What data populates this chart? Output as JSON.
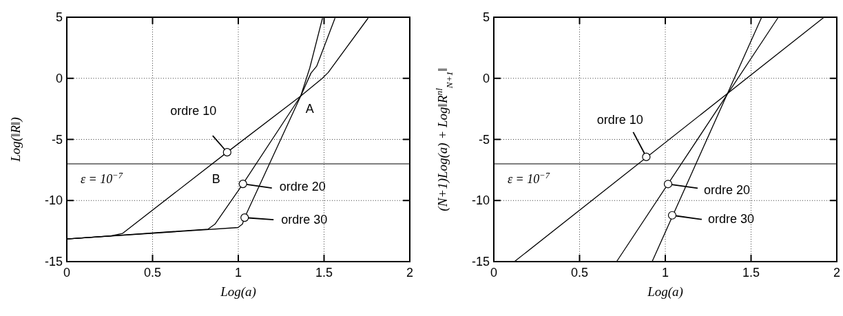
{
  "chart_data": [
    {
      "type": "line",
      "xlabel": "Log(a)",
      "ylabel": "Log(‖R‖)",
      "xlim": [
        0,
        2
      ],
      "ylim": [
        -15,
        5
      ],
      "xticks": [
        0,
        0.5,
        1,
        1.5,
        2
      ],
      "yticks": [
        -15,
        -10,
        -5,
        0,
        5
      ],
      "grid": true,
      "series": [
        {
          "type": "line",
          "color": "#000000",
          "x": [
            0,
            0.257,
            0.324,
            0.935,
            1.364,
            1.49,
            1.524,
            1.757
          ],
          "values": [
            -13.15,
            -12.9,
            -12.7,
            -6.05,
            -1.45,
            0.0,
            0.47,
            4.93
          ]
        },
        {
          "type": "line",
          "color": "#000000",
          "x": [
            0,
            0.824,
            0.864,
            1.027,
            1.364,
            1.424,
            1.457,
            1.564
          ],
          "values": [
            -13.15,
            -12.34,
            -11.93,
            -8.64,
            -1.45,
            0.43,
            0.99,
            4.93
          ]
        },
        {
          "type": "line",
          "color": "#000000",
          "x": [
            0,
            0.998,
            1.024,
            1.037,
            1.364,
            1.417,
            1.491
          ],
          "values": [
            -13.15,
            -12.21,
            -11.93,
            -11.4,
            -1.45,
            0.86,
            4.93
          ]
        },
        {
          "type": "scatter",
          "marker": "circle",
          "color": "#000000",
          "x": [
            0.935,
            1.027,
            1.037
          ],
          "values": [
            -6.05,
            -8.64,
            -11.4
          ]
        }
      ],
      "ref_lines": [
        {
          "axis": "y",
          "value": -7,
          "label": "ε = 10$^{−7}$",
          "color": "#000000"
        }
      ],
      "annotations": [
        {
          "text": "ordre 10",
          "x": 0.935,
          "y": -6.05
        },
        {
          "text": "ordre 20",
          "x": 1.027,
          "y": -8.64
        },
        {
          "text": "ordre 30",
          "x": 1.037,
          "y": -11.4
        },
        {
          "text": "A",
          "x": 1.364,
          "y": -1.45
        },
        {
          "text": "B",
          "x": 0.83,
          "y": -7
        }
      ]
    },
    {
      "type": "line",
      "xlabel": "Log(a)",
      "ylabel": "(N+1)Log(a) + Log‖R$^{nl}$$_{N+1}$‖",
      "xlim": [
        0,
        2
      ],
      "ylim": [
        -15,
        5
      ],
      "xticks": [
        0,
        0.5,
        1,
        1.5,
        2
      ],
      "yticks": [
        -15,
        -10,
        -5,
        0,
        5
      ],
      "grid": true,
      "series": [
        {
          "type": "line",
          "color": "#000000",
          "x": [
            0.12,
            1.926
          ],
          "values": [
            -15,
            5
          ]
        },
        {
          "type": "line",
          "color": "#000000",
          "x": [
            0.716,
            1.659
          ],
          "values": [
            -15,
            5
          ]
        },
        {
          "type": "line",
          "color": "#000000",
          "x": [
            0.923,
            1.562
          ],
          "values": [
            -15,
            5
          ]
        },
        {
          "type": "scatter",
          "marker": "circle",
          "color": "#000000",
          "x": [
            0.889,
            1.016,
            1.04
          ],
          "values": [
            -6.43,
            -8.65,
            -11.21
          ]
        }
      ],
      "ref_lines": [
        {
          "axis": "y",
          "value": -7,
          "label": "ε = 10$^{−7}$",
          "color": "#000000"
        }
      ],
      "annotations": [
        {
          "text": "ordre 10",
          "x": 0.889,
          "y": -6.43
        },
        {
          "text": "ordre 20",
          "x": 1.016,
          "y": -8.65
        },
        {
          "text": "ordre 30",
          "x": 1.04,
          "y": -11.21
        }
      ]
    }
  ]
}
